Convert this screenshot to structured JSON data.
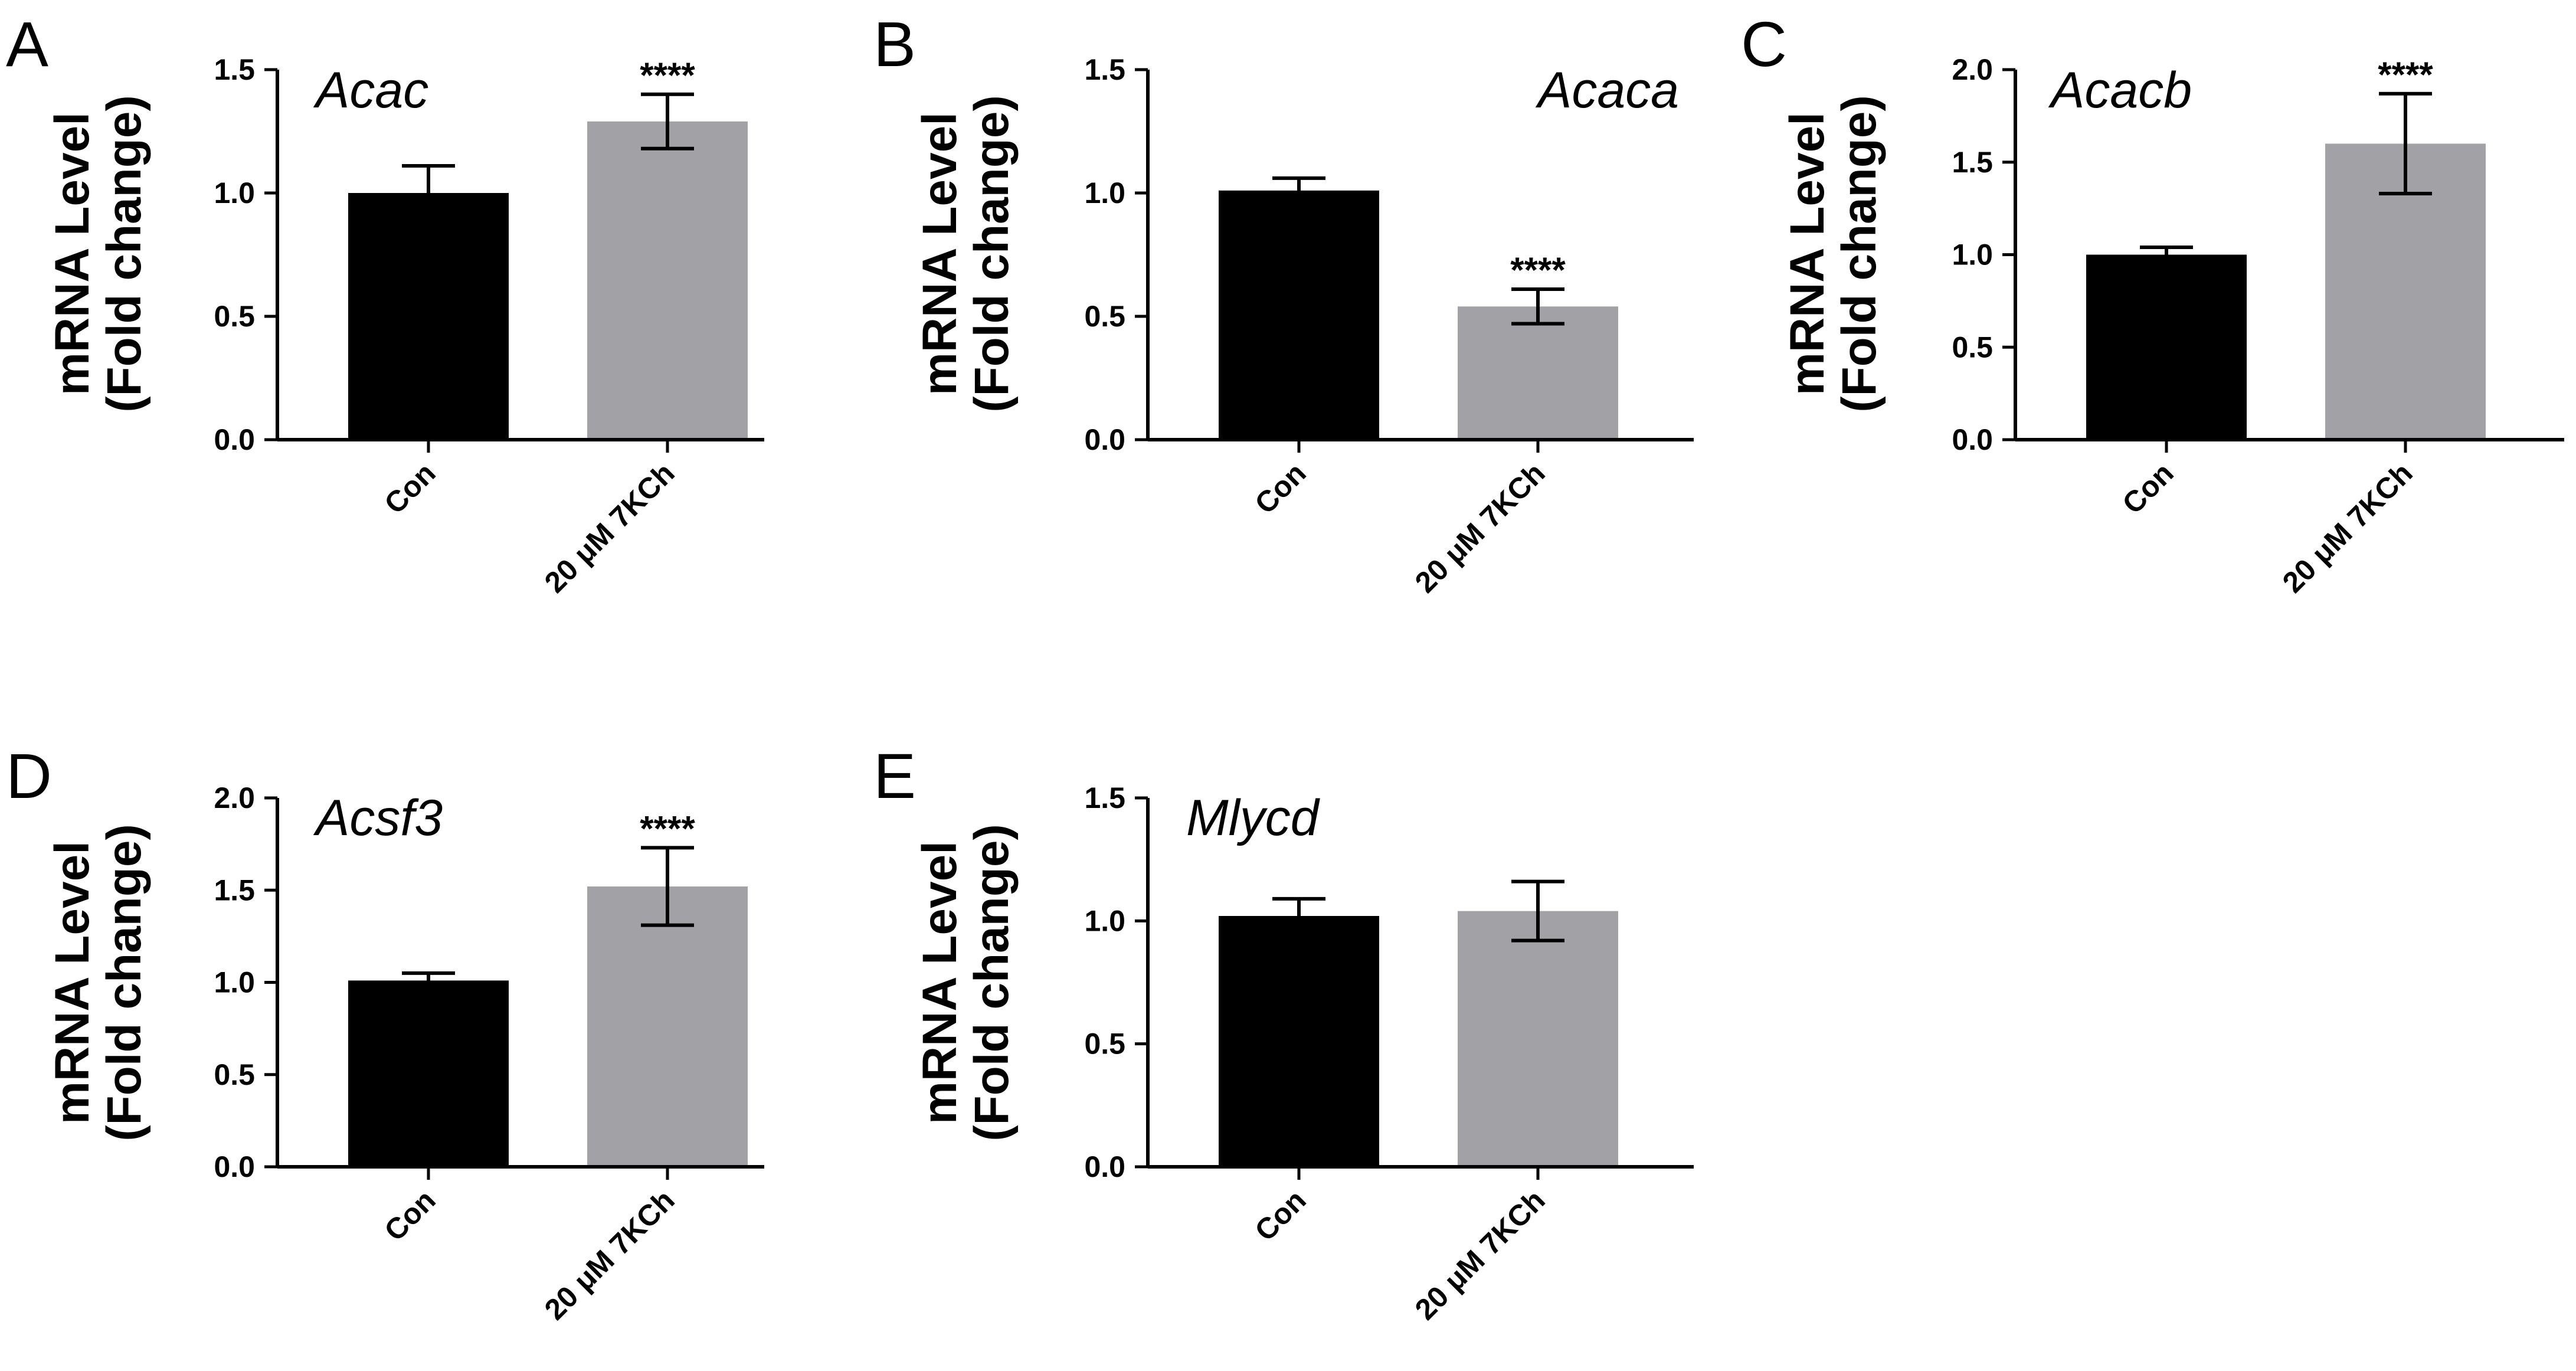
{
  "chart_data": [
    {
      "type": "bar",
      "panel": "A",
      "gene": "Acac",
      "ylabel": [
        "mRNA Level",
        "(Fold change)"
      ],
      "ylim": [
        0,
        1.5
      ],
      "yticks": [
        "0.0",
        "0.5",
        "1.0",
        "1.5"
      ],
      "categories": [
        "Con",
        "20 μM 7KCh"
      ],
      "values": [
        1.0,
        1.29
      ],
      "errors": [
        0.11,
        0.11
      ],
      "colors": [
        "#000000",
        "#a2a2a6"
      ],
      "significance": [
        "",
        "****"
      ]
    },
    {
      "type": "bar",
      "panel": "B",
      "gene": "Acaca",
      "ylabel": [
        "mRNA Level",
        "(Fold change)"
      ],
      "ylim": [
        0,
        1.5
      ],
      "yticks": [
        "0.0",
        "0.5",
        "1.0",
        "1.5"
      ],
      "categories": [
        "Con",
        "20 μM 7KCh"
      ],
      "values": [
        1.01,
        0.54
      ],
      "errors": [
        0.05,
        0.07
      ],
      "colors": [
        "#000000",
        "#a2a2a6"
      ],
      "significance": [
        "",
        "****"
      ]
    },
    {
      "type": "bar",
      "panel": "C",
      "gene": "Acacb",
      "ylabel": [
        "mRNA Level",
        "(Fold change)"
      ],
      "ylim": [
        0,
        2.0
      ],
      "yticks": [
        "0.0",
        "0.5",
        "1.0",
        "1.5",
        "2.0"
      ],
      "categories": [
        "Con",
        "20 μM 7KCh"
      ],
      "values": [
        1.0,
        1.6
      ],
      "errors": [
        0.04,
        0.27
      ],
      "colors": [
        "#000000",
        "#a2a2a6"
      ],
      "significance": [
        "",
        "****"
      ]
    },
    {
      "type": "bar",
      "panel": "D",
      "gene": "Acsf3",
      "ylabel": [
        "mRNA Level",
        "(Fold change)"
      ],
      "ylim": [
        0,
        2.0
      ],
      "yticks": [
        "0.0",
        "0.5",
        "1.0",
        "1.5",
        "2.0"
      ],
      "categories": [
        "Con",
        "20 μM 7KCh"
      ],
      "values": [
        1.01,
        1.52
      ],
      "errors": [
        0.04,
        0.21
      ],
      "colors": [
        "#000000",
        "#a2a2a6"
      ],
      "significance": [
        "",
        "****"
      ]
    },
    {
      "type": "bar",
      "panel": "E",
      "gene": "Mlycd",
      "ylabel": [
        "mRNA Level",
        "(Fold change)"
      ],
      "ylim": [
        0,
        1.5
      ],
      "yticks": [
        "0.0",
        "0.5",
        "1.0",
        "1.5"
      ],
      "categories": [
        "Con",
        "20 μM 7KCh"
      ],
      "values": [
        1.02,
        1.04
      ],
      "errors": [
        0.07,
        0.12
      ],
      "colors": [
        "#000000",
        "#a2a2a6"
      ],
      "significance": [
        "",
        ""
      ]
    }
  ]
}
